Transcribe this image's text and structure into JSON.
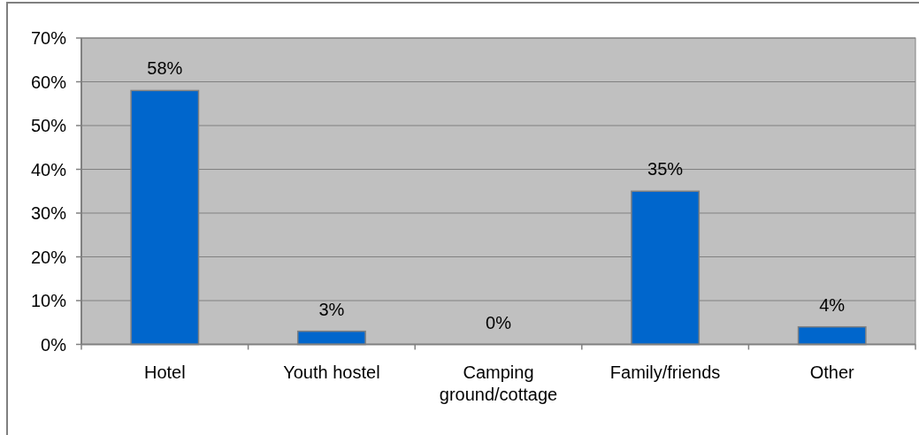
{
  "chart_data": {
    "type": "bar",
    "categories": [
      "Hotel",
      "Youth hostel",
      "Camping ground/cottage",
      "Family/friends",
      "Other"
    ],
    "values": [
      58,
      3,
      0,
      35,
      4
    ],
    "color": "#0066cc",
    "value_labels": [
      "58%",
      "3%",
      "0%",
      "35%",
      "4%"
    ],
    "ylim": [
      0,
      70
    ],
    "yticks": [
      {
        "value": 0,
        "label": "0%"
      },
      {
        "value": 10,
        "label": "10%"
      },
      {
        "value": 20,
        "label": "20%"
      },
      {
        "value": 30,
        "label": "30%"
      },
      {
        "value": 40,
        "label": "40%"
      },
      {
        "value": 50,
        "label": "50%"
      },
      {
        "value": 60,
        "label": "60%"
      },
      {
        "value": 70,
        "label": "70%"
      }
    ],
    "grid": "y"
  }
}
